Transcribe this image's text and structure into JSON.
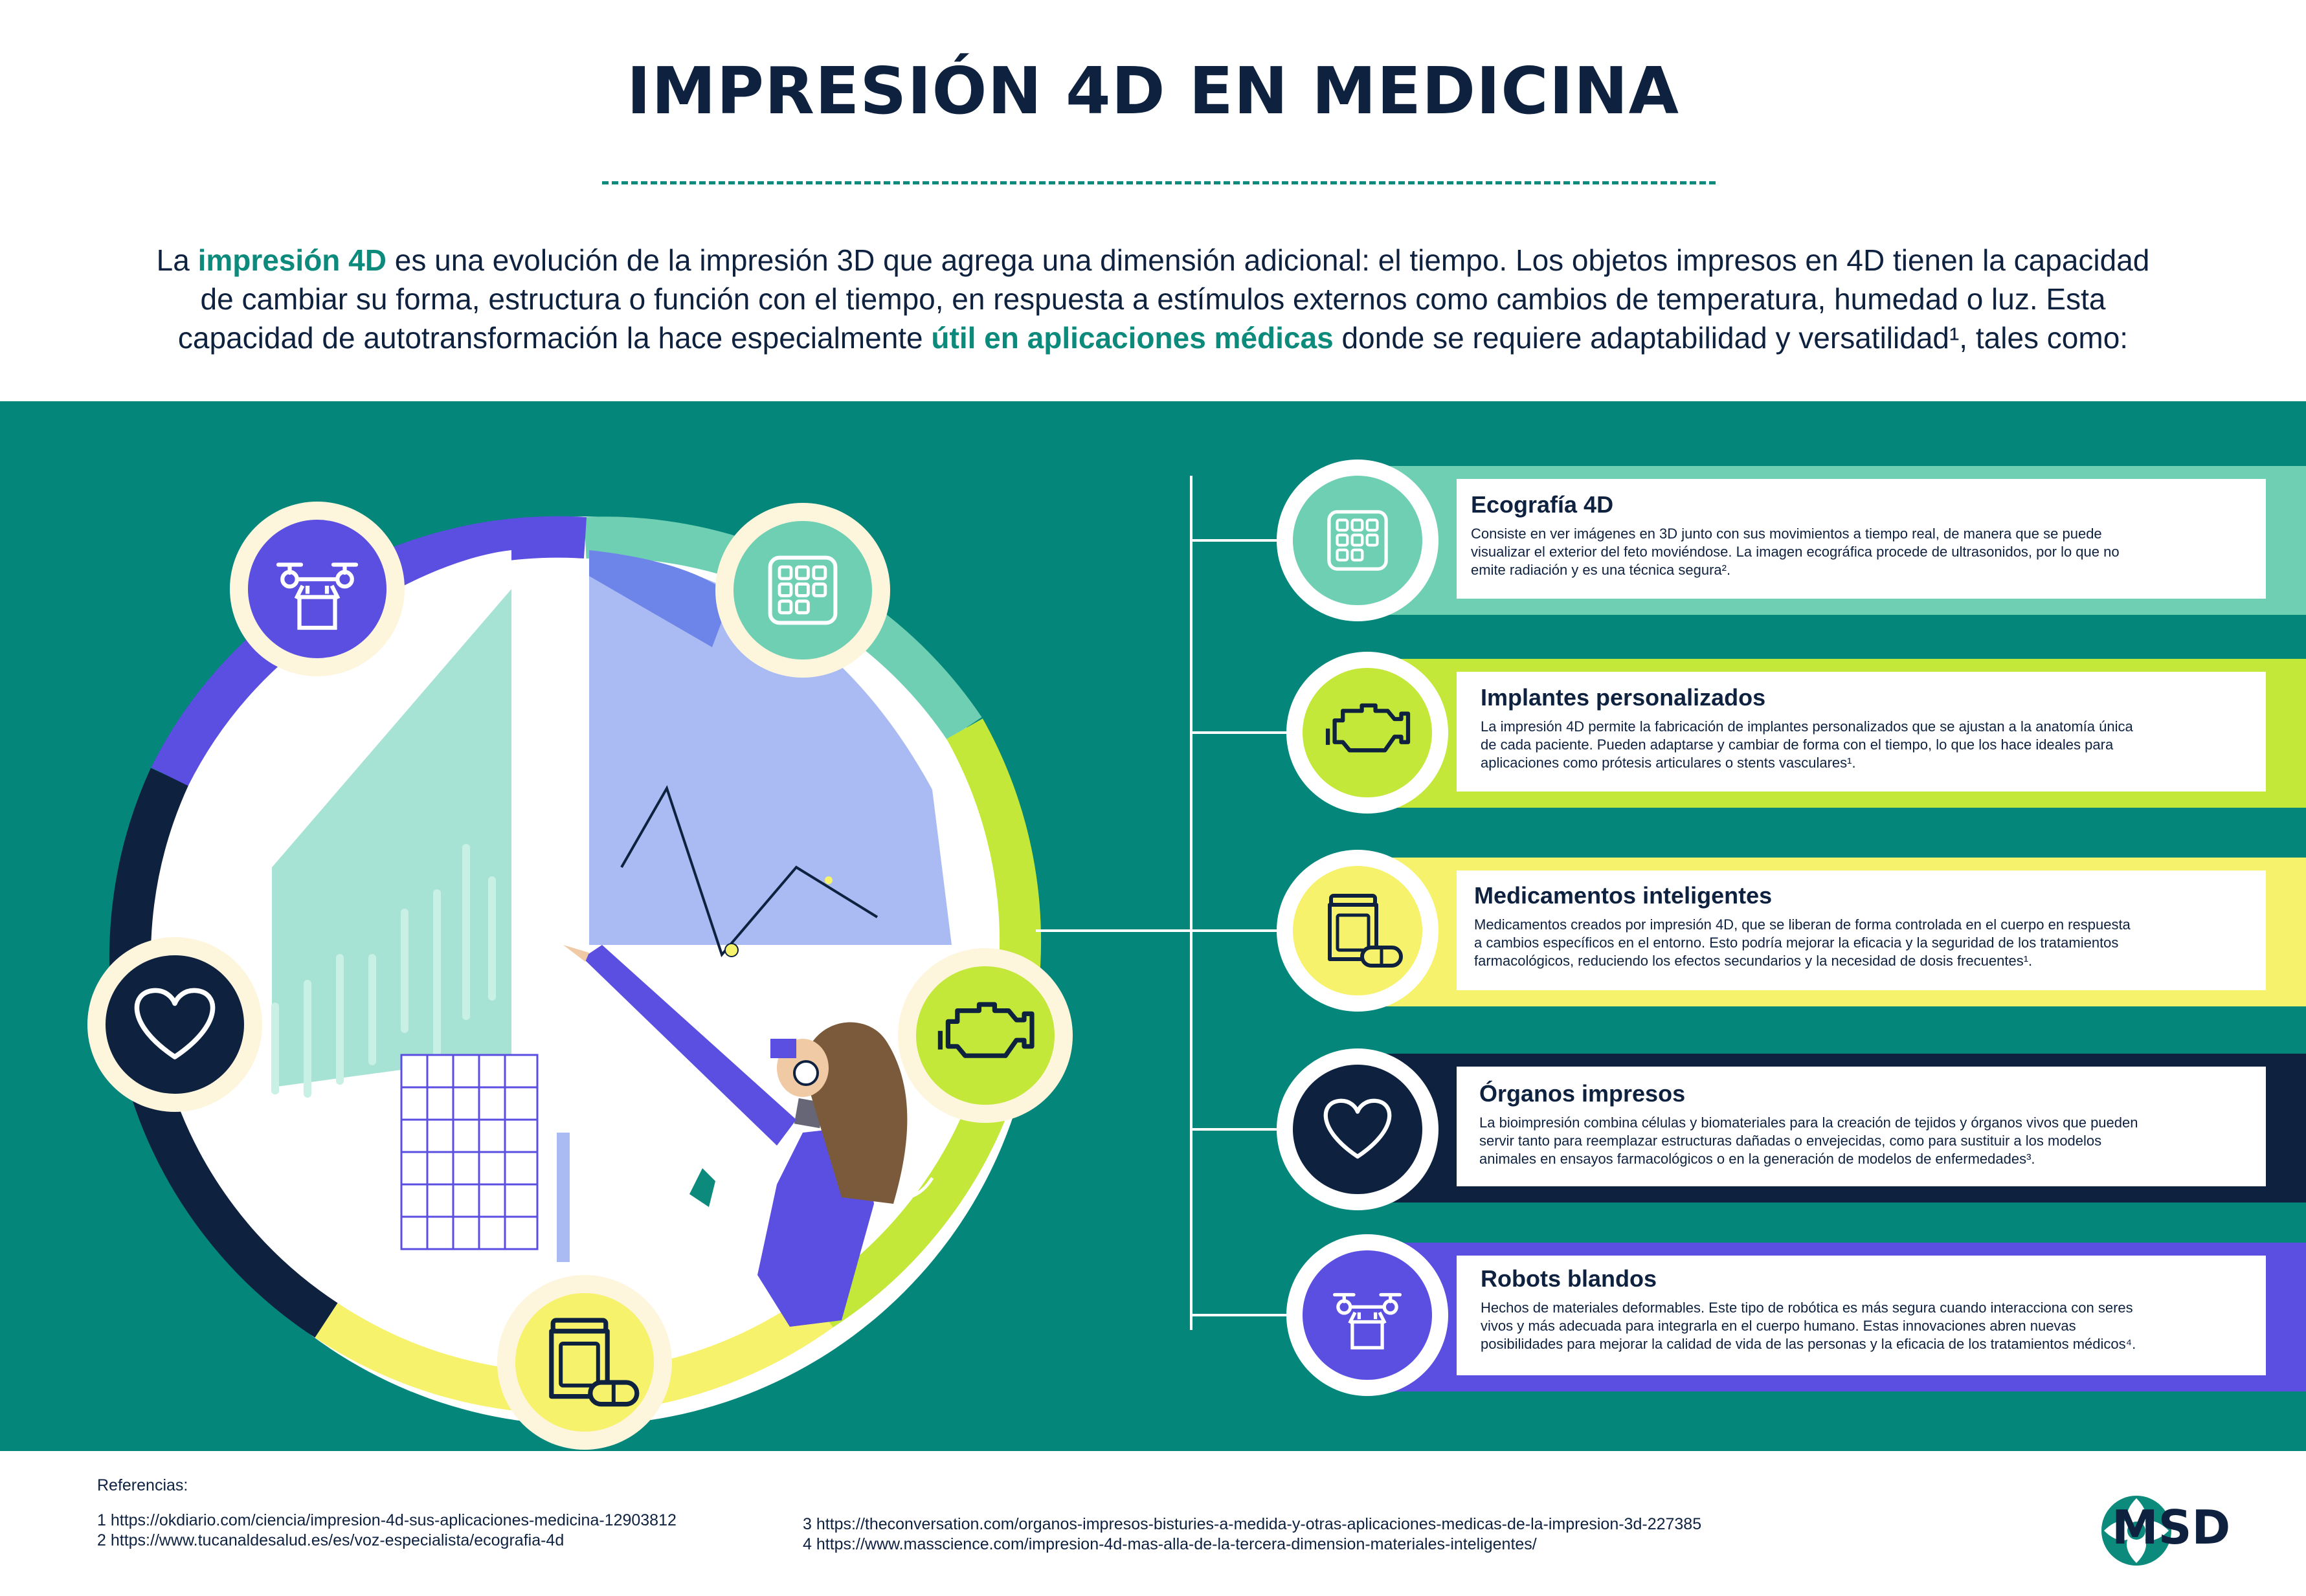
{
  "title": "IMPRESIÓN 4D EN MEDICINA",
  "intro": {
    "t1": "La ",
    "h1": "impresión 4D",
    "t2": " es una evolución de la impresión 3D que agrega una dimensión adicional: el tiempo. Los objetos impresos en 4D tienen la capacidad de cambiar su forma, estructura o función con el tiempo, en respuesta a estímulos externos como cambios de temperatura, humedad o luz. Esta capacidad de autotransformación la hace especialmente ",
    "h2": "útil en aplicaciones médicas",
    "t3": " donde se requiere adaptabilidad y versatilidad¹, tales como:"
  },
  "colors": {
    "teal_bg": "#05867a",
    "navy": "#0e2240",
    "mint": "#6fcfb3",
    "lime": "#c3e83a",
    "yellow": "#f7f26b",
    "indigo": "#5a4fe0"
  },
  "cards": [
    {
      "title": "Ecografía 4D",
      "icon": "keypad-grid-icon",
      "lines": [
        "Consiste en ver imágenes en 3D junto con sus movimientos a tiempo real, de manera que se puede",
        "visualizar el exterior del feto moviéndose. La imagen ecográfica procede de ultrasonidos, por lo que no",
        "emite radiación y es una técnica segura².",
        ""
      ]
    },
    {
      "title": "Implantes personalizados",
      "icon": "engine-icon",
      "lines": [
        "La impresión 4D permite la fabricación de implantes personalizados que se ajustan a la anatomía única",
        "de cada paciente. Pueden adaptarse y cambiar de forma con el tiempo, lo que los hace ideales para",
        "aplicaciones como prótesis articulares o stents vasculares¹.",
        ""
      ]
    },
    {
      "title": "Medicamentos inteligentes",
      "icon": "pill-bottle-icon",
      "lines": [
        "Medicamentos creados por impresión 4D, que se liberan de forma controlada en el cuerpo en respuesta",
        "a cambios específicos en el entorno. Esto podría mejorar la eficacia y la seguridad de los tratamientos",
        "farmacológicos, reduciendo los efectos secundarios y la necesidad de dosis frecuentes¹.",
        ""
      ]
    },
    {
      "title": "Órganos impresos",
      "icon": "heart-icon",
      "lines": [
        "La bioimpresión combina células y biomateriales para la creación de tejidos y órganos vivos que pueden",
        "servir tanto para reemplazar estructuras dañadas o envejecidas, como para sustituir a los modelos",
        "animales en ensayos farmacológicos o en la generación de modelos de enfermedades³.",
        ""
      ]
    },
    {
      "title": "Robots blandos",
      "icon": "drone-robot-icon",
      "lines": [
        "Hechos de materiales deformables. Este tipo de robótica es más segura cuando interacciona con seres",
        "vivos y más adecuada para integrarla en el cuerpo humano. Estas innovaciones abren nuevas",
        "posibilidades para mejorar la calidad de vida de las personas y la eficacia de los tratamientos médicos⁴."
      ]
    }
  ],
  "references": {
    "label": "Referencias:",
    "r1": "1 https://okdiario.com/ciencia/impresion-4d-sus-aplicaciones-medicina-12903812",
    "r2": "2 https://www.tucanaldesalud.es/es/voz-especialista/ecografia-4d",
    "r3": "3 https://theconversation.com/organos-impresos-bisturies-a-medida-y-otras-aplicaciones-medicas-de-la-impresion-3d-227385",
    "r4": "4 https://www.masscience.com/impresion-4d-mas-alla-de-la-tercera-dimension-materiales-inteligentes/"
  },
  "brand": "MSD"
}
